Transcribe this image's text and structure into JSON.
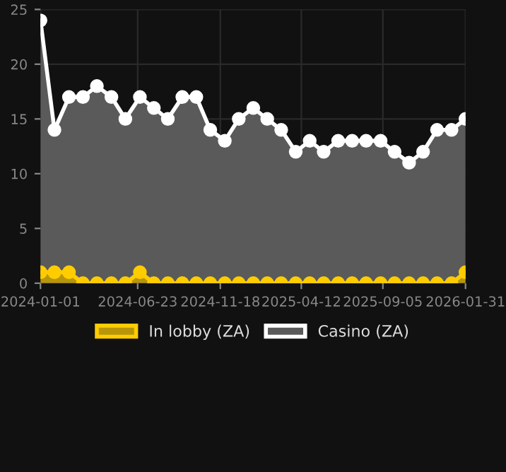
{
  "chart_data": {
    "type": "area",
    "x": [
      "2024-01-01",
      "2024-01-26",
      "2024-02-21",
      "2024-03-17",
      "2024-04-11",
      "2024-05-07",
      "2024-06-01",
      "2024-06-27",
      "2024-07-22",
      "2024-08-16",
      "2024-09-11",
      "2024-10-06",
      "2024-10-31",
      "2024-11-26",
      "2024-12-21",
      "2025-01-16",
      "2025-02-10",
      "2025-03-07",
      "2025-04-02",
      "2025-04-27",
      "2025-05-22",
      "2025-06-17",
      "2025-07-12",
      "2025-08-06",
      "2025-09-01",
      "2025-09-26",
      "2025-10-22",
      "2025-11-16",
      "2025-12-11",
      "2026-01-06",
      "2026-01-31"
    ],
    "series": [
      {
        "name": "In lobby (ZA)",
        "color": "#ffcc00",
        "values": [
          1,
          1,
          1,
          0,
          0,
          0,
          0,
          1,
          0,
          0,
          0,
          0,
          0,
          0,
          0,
          0,
          0,
          0,
          0,
          0,
          0,
          0,
          0,
          0,
          0,
          0,
          0,
          0,
          0,
          0,
          1
        ]
      },
      {
        "name": "Casino (ZA)",
        "color": "#ffffff",
        "values": [
          24,
          14,
          17,
          17,
          18,
          17,
          15,
          17,
          16,
          15,
          17,
          17,
          14,
          13,
          15,
          16,
          15,
          14,
          12,
          13,
          12,
          13,
          13,
          13,
          13,
          12,
          11,
          12,
          14,
          14,
          15
        ]
      }
    ],
    "xlim": [
      "2024-01-01",
      "2026-01-31"
    ],
    "xticks": [
      "2024-01-01",
      "2024-06-23",
      "2024-11-18",
      "2025-04-12",
      "2025-09-05",
      "2026-01-31"
    ],
    "ylim": [
      0,
      25
    ],
    "yticks": [
      0,
      5,
      10,
      15,
      20,
      25
    ],
    "grid": true,
    "legend": "bottom",
    "marker": "circle"
  }
}
